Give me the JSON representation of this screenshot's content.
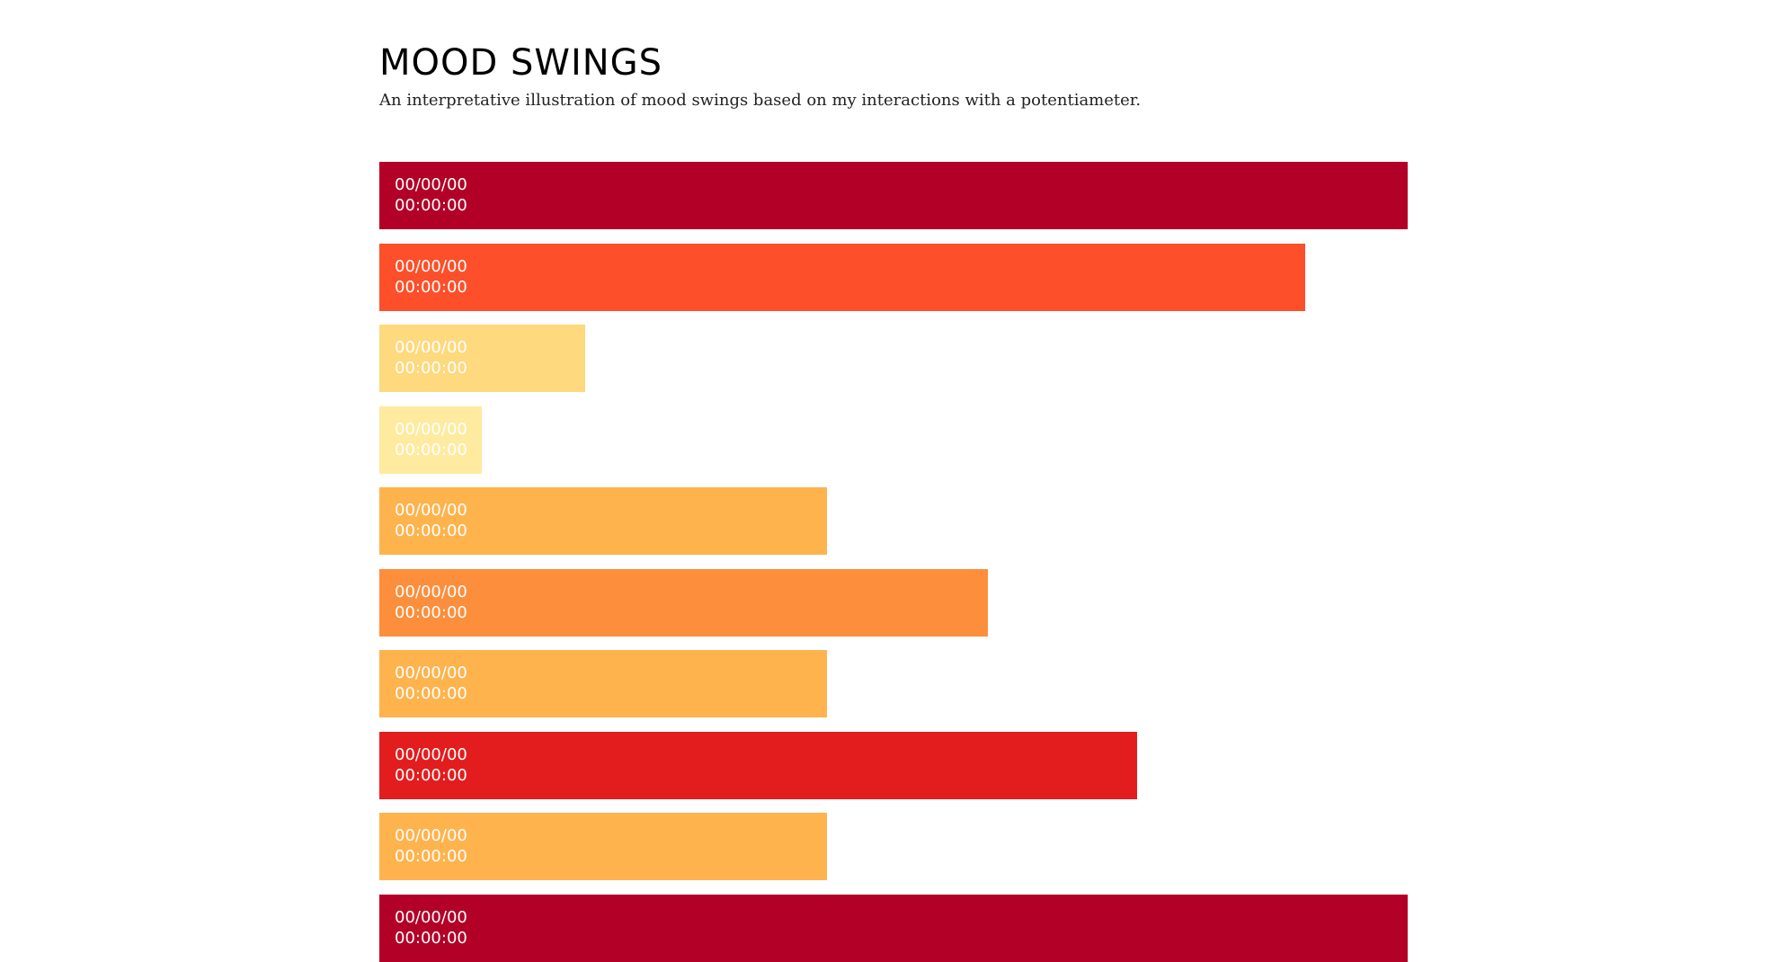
{
  "page": {
    "title": "MOOD SWINGS",
    "subtitle": "An interpretative illustration of mood swings based on my interactions with a potentiameter."
  },
  "chart_data": {
    "type": "bar",
    "orientation": "horizontal",
    "value_unit": "fraction of maximum bar length",
    "series": [
      {
        "values": [
          1.0,
          0.9,
          0.2,
          0.1,
          0.435,
          0.592,
          0.435,
          0.737,
          0.435,
          1.0
        ]
      }
    ],
    "bars": [
      {
        "date": "00/00/00",
        "time": "00:00:00",
        "value": 1.0,
        "color": "#b30027"
      },
      {
        "date": "00/00/00",
        "time": "00:00:00",
        "value": 0.9,
        "color": "#fc4f2a"
      },
      {
        "date": "00/00/00",
        "time": "00:00:00",
        "value": 0.2,
        "color": "#fed97d"
      },
      {
        "date": "00/00/00",
        "time": "00:00:00",
        "value": 0.1,
        "color": "#ffeb9f"
      },
      {
        "date": "00/00/00",
        "time": "00:00:00",
        "value": 0.435,
        "color": "#feb34d"
      },
      {
        "date": "00/00/00",
        "time": "00:00:00",
        "value": 0.592,
        "color": "#fc8e3c"
      },
      {
        "date": "00/00/00",
        "time": "00:00:00",
        "value": 0.435,
        "color": "#feb34d"
      },
      {
        "date": "00/00/00",
        "time": "00:00:00",
        "value": 0.737,
        "color": "#e31c1d"
      },
      {
        "date": "00/00/00",
        "time": "00:00:00",
        "value": 0.435,
        "color": "#feb34d"
      },
      {
        "date": "00/00/00",
        "time": "00:00:00",
        "value": 1.0,
        "color": "#b30027"
      }
    ]
  }
}
